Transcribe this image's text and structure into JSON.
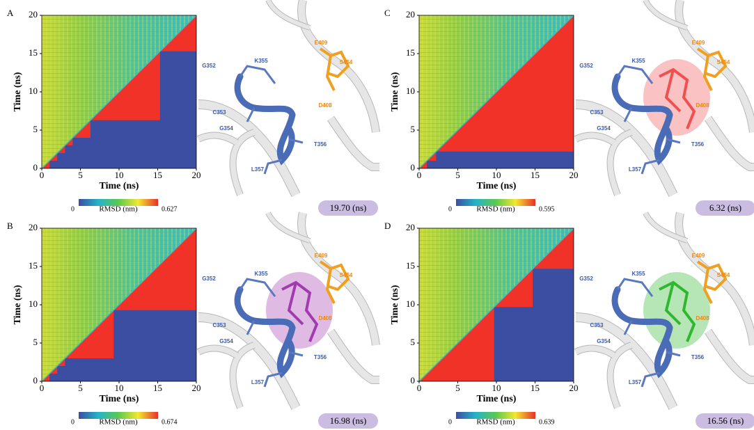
{
  "chart_data": [
    {
      "type": "heatmap",
      "panel": "A",
      "xlabel": "Time (ns)",
      "ylabel": "Time (ns)",
      "xlim": [
        0,
        20
      ],
      "ylim": [
        0,
        20
      ],
      "xticks": [
        0,
        5,
        10,
        15,
        20
      ],
      "yticks": [
        0,
        5,
        10,
        15,
        20
      ],
      "cluster_edges": [
        0,
        1,
        2,
        3,
        4,
        6.3,
        15.3,
        20
      ],
      "colorbar_label": "RMSD (nm)",
      "colorbar_ticks": [
        0,
        0.627
      ],
      "time_label": "19.70 (ns)",
      "residues": [
        "G352",
        "K355",
        "E409",
        "S454",
        "C353",
        "G354",
        "D408",
        "T356",
        "L357"
      ]
    },
    {
      "type": "heatmap",
      "panel": "B",
      "xlabel": "Time (ns)",
      "ylabel": "Time (ns)",
      "xlim": [
        0,
        20
      ],
      "ylim": [
        0,
        20
      ],
      "xticks": [
        0,
        5,
        10,
        15,
        20
      ],
      "yticks": [
        0,
        5,
        10,
        15,
        20
      ],
      "cluster_edges": [
        0,
        1,
        2,
        3,
        9.3,
        20
      ],
      "colorbar_label": "RMSD (nm)",
      "colorbar_ticks": [
        0,
        0.674
      ],
      "time_label": "16.98 (ns)",
      "residues": [
        "G352",
        "K355",
        "E409",
        "S454",
        "C353",
        "G354",
        "D408",
        "T356",
        "L357"
      ],
      "ligand_color": "#a23bb0"
    },
    {
      "type": "heatmap",
      "panel": "C",
      "xlabel": "Time (ns)",
      "ylabel": "Time (ns)",
      "xlim": [
        0,
        20
      ],
      "ylim": [
        0,
        20
      ],
      "xticks": [
        0,
        5,
        10,
        15,
        20
      ],
      "yticks": [
        0,
        5,
        10,
        15,
        20
      ],
      "cluster_edges": [
        0,
        1,
        2.2,
        20
      ],
      "colorbar_label": "RMSD (nm)",
      "colorbar_ticks": [
        0,
        0.595
      ],
      "time_label": "6.32 (ns)",
      "residues": [
        "G352",
        "K355",
        "E409",
        "S454",
        "C353",
        "G354",
        "D408",
        "T356",
        "L357"
      ],
      "ligand_color": "#f05050"
    },
    {
      "type": "heatmap",
      "panel": "D",
      "xlabel": "Time (ns)",
      "ylabel": "Time (ns)",
      "xlim": [
        0,
        20
      ],
      "ylim": [
        0,
        20
      ],
      "xticks": [
        0,
        5,
        10,
        15,
        20
      ],
      "yticks": [
        0,
        5,
        10,
        15,
        20
      ],
      "cluster_edges": [
        0,
        9.7,
        14.7,
        20
      ],
      "colorbar_label": "RMSD (nm)",
      "colorbar_ticks": [
        0,
        0.639
      ],
      "time_label": "16.56 (ns)",
      "residues": [
        "G352",
        "K355",
        "E409",
        "S454",
        "C353",
        "G354",
        "D408",
        "T356",
        "L357"
      ],
      "ligand_color": "#2fb82f"
    }
  ]
}
